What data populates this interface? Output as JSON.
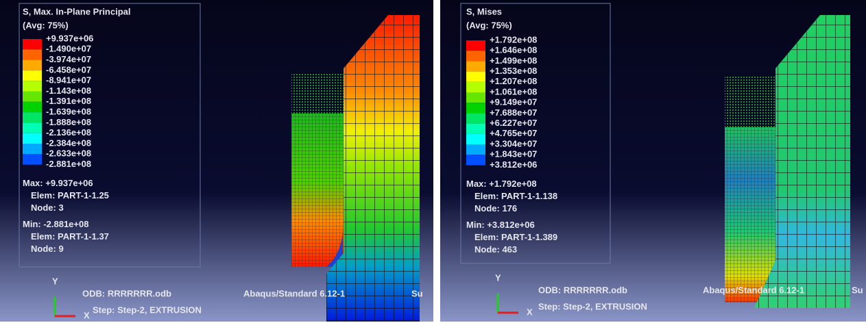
{
  "panels": [
    {
      "legend": {
        "title": "S, Max. In-Plane Principal",
        "average": "(Avg: 75%)",
        "values": [
          "+9.937e+06",
          "-1.490e+07",
          "-3.974e+07",
          "-6.458e+07",
          "-8.941e+07",
          "-1.143e+08",
          "-1.391e+08",
          "-1.639e+08",
          "-1.888e+08",
          "-2.136e+08",
          "-2.384e+08",
          "-2.633e+08",
          "-2.881e+08"
        ],
        "colors": [
          "#ff0000",
          "#ff6400",
          "#ffaa00",
          "#ffff00",
          "#b4ff00",
          "#64e600",
          "#00d200",
          "#00e664",
          "#00ffb4",
          "#00ffff",
          "#00aaff",
          "#0050ff"
        ]
      },
      "extremes": [
        {
          "line": "Max: +9.937e+06",
          "elem": "Elem: PART-1-1.25",
          "node": "Node: 3"
        },
        {
          "line": "Min: -2.881e+08",
          "elem": "Elem: PART-1-1.37",
          "node": "Node: 9"
        }
      ],
      "footer": {
        "odb": "ODB: RRRRRRR.odb",
        "version": "Abaqus/Standard 6.12-1",
        "status": "Su",
        "step": "Step: Step-2, EXTRUSION"
      },
      "triad": {
        "y": "Y",
        "x": "X"
      }
    },
    {
      "legend": {
        "title": "S, Mises",
        "average": "(Avg: 75%)",
        "values": [
          "+1.792e+08",
          "+1.646e+08",
          "+1.499e+08",
          "+1.353e+08",
          "+1.207e+08",
          "+1.061e+08",
          "+9.149e+07",
          "+7.688e+07",
          "+6.227e+07",
          "+4.765e+07",
          "+3.304e+07",
          "+1.843e+07",
          "+3.812e+06"
        ],
        "colors": [
          "#ff0000",
          "#ff6400",
          "#ffaa00",
          "#ffff00",
          "#b4ff00",
          "#64e600",
          "#00d200",
          "#00e664",
          "#00ffb4",
          "#00ffff",
          "#00aaff",
          "#0050ff"
        ]
      },
      "extremes": [
        {
          "line": "Max: +1.792e+08",
          "elem": "Elem: PART-1-1.138",
          "node": "Node: 176"
        },
        {
          "line": "Min: +3.812e+06",
          "elem": "Elem: PART-1-1.389",
          "node": "Node: 463"
        }
      ],
      "footer": {
        "odb": "ODB: RRRRRRR.odb",
        "version": "Abaqus/Standard 6.12-1",
        "status": "Su",
        "step": "Step: Step-2, EXTRUSION"
      },
      "triad": {
        "y": "Y",
        "x": "X"
      }
    }
  ]
}
